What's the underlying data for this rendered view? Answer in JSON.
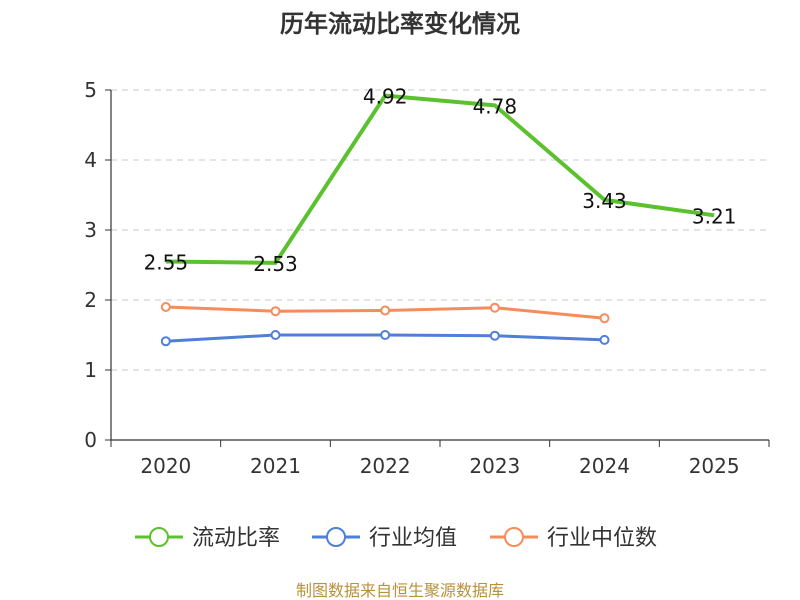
{
  "chart_data": {
    "type": "line",
    "title": "历年流动比率变化情况",
    "categories": [
      "2020",
      "2021",
      "2022",
      "2023",
      "2024",
      "2025"
    ],
    "ylim": [
      0,
      5
    ],
    "yticks": [
      "0",
      "1",
      "2",
      "3",
      "4",
      "5"
    ],
    "grid": true,
    "legend_position": "bottom",
    "series": [
      {
        "name": "流动比率",
        "color": "#5cc12e",
        "values": [
          2.55,
          2.53,
          4.92,
          4.78,
          3.43,
          3.21
        ],
        "labels": [
          "2.55",
          "2.53",
          "4.92",
          "4.78",
          "3.43",
          "3.21"
        ]
      },
      {
        "name": "行业均值",
        "color": "#4f7fd6",
        "values": [
          1.41,
          1.5,
          1.5,
          1.49,
          1.43,
          null
        ]
      },
      {
        "name": "行业中位数",
        "color": "#f58c5a",
        "values": [
          1.9,
          1.84,
          1.85,
          1.89,
          1.74,
          null
        ]
      }
    ],
    "source": "制图数据来自恒生聚源数据库"
  }
}
